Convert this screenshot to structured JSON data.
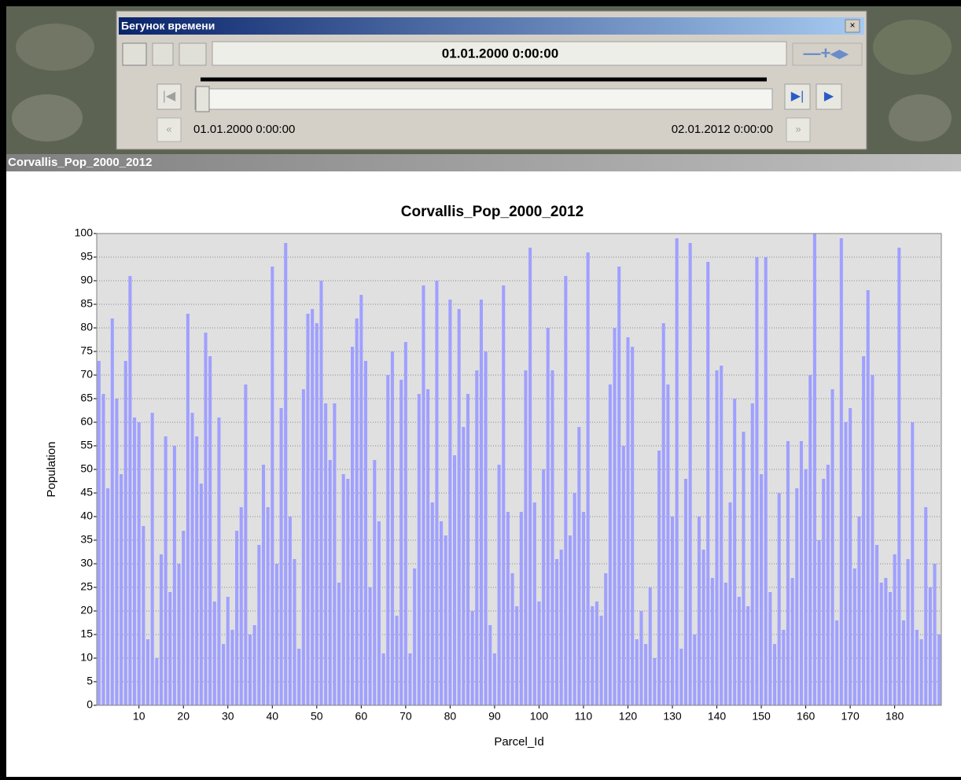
{
  "time_slider": {
    "title": "Бегунок времени",
    "current_time": "01.01.2000 0:00:00",
    "start_time": "01.01.2000 0:00:00",
    "end_time": "02.01.2012 0:00:00"
  },
  "window": {
    "title": "Corvallis_Pop_2000_2012"
  },
  "chart_data": {
    "type": "bar",
    "title": "Corvallis_Pop_2000_2012",
    "x_label": "Parcel_Id",
    "y_label": "Population",
    "x": [
      1,
      2,
      3,
      4,
      5,
      6,
      7,
      8,
      9,
      10,
      11,
      12,
      13,
      14,
      15,
      16,
      17,
      18,
      19,
      20,
      21,
      22,
      23,
      24,
      25,
      26,
      27,
      28,
      29,
      30,
      31,
      32,
      33,
      34,
      35,
      36,
      37,
      38,
      39,
      40,
      41,
      42,
      43,
      44,
      45,
      46,
      47,
      48,
      49,
      50,
      51,
      52,
      53,
      54,
      55,
      56,
      57,
      58,
      59,
      60,
      61,
      62,
      63,
      64,
      65,
      66,
      67,
      68,
      69,
      70,
      71,
      72,
      73,
      74,
      75,
      76,
      77,
      78,
      79,
      80,
      81,
      82,
      83,
      84,
      85,
      86,
      87,
      88,
      89,
      90,
      91,
      92,
      93,
      94,
      95,
      96,
      97,
      98,
      99,
      100,
      101,
      102,
      103,
      104,
      105,
      106,
      107,
      108,
      109,
      110,
      111,
      112,
      113,
      114,
      115,
      116,
      117,
      118,
      119,
      120,
      121,
      122,
      123,
      124,
      125,
      126,
      127,
      128,
      129,
      130,
      131,
      132,
      133,
      134,
      135,
      136,
      137,
      138,
      139,
      140,
      141,
      142,
      143,
      144,
      145,
      146,
      147,
      148,
      149,
      150,
      151,
      152,
      153,
      154,
      155,
      156,
      157,
      158,
      159,
      160,
      161,
      162,
      163,
      164,
      165,
      166,
      167,
      168,
      169,
      170,
      171,
      172,
      173,
      174,
      175,
      176,
      177,
      178,
      179,
      180,
      181,
      182,
      183,
      184,
      185,
      186,
      187,
      188,
      189,
      190
    ],
    "values": [
      73,
      66,
      46,
      82,
      65,
      49,
      73,
      91,
      61,
      60,
      38,
      14,
      62,
      10,
      32,
      57,
      24,
      55,
      30,
      37,
      83,
      62,
      57,
      47,
      79,
      74,
      22,
      61,
      13,
      23,
      16,
      37,
      42,
      68,
      15,
      17,
      34,
      51,
      42,
      93,
      30,
      63,
      98,
      40,
      31,
      12,
      67,
      83,
      84,
      81,
      90,
      64,
      52,
      64,
      26,
      49,
      48,
      76,
      82,
      87,
      73,
      25,
      52,
      39,
      11,
      70,
      75,
      19,
      69,
      77,
      11,
      29,
      66,
      89,
      67,
      43,
      90,
      39,
      36,
      86,
      53,
      84,
      59,
      66,
      20,
      71,
      86,
      75,
      17,
      11,
      51,
      89,
      41,
      28,
      21,
      41,
      71,
      97,
      43,
      22,
      50,
      80,
      71,
      31,
      33,
      91,
      36,
      45,
      59,
      41,
      96,
      21,
      22,
      19,
      28,
      68,
      80,
      93,
      55,
      78,
      76,
      14,
      20,
      13,
      25,
      10,
      54,
      81,
      68,
      40,
      99,
      12,
      48,
      98,
      15,
      40,
      33,
      94,
      27,
      71,
      72,
      26,
      43,
      65,
      23,
      58,
      21,
      64,
      95,
      49,
      95,
      24,
      13,
      45,
      16,
      56,
      27,
      46,
      56,
      50,
      70,
      100,
      35,
      48,
      51,
      67,
      18,
      99,
      60,
      63,
      29,
      40,
      74,
      88,
      70,
      34,
      26,
      27,
      24,
      32,
      97,
      18,
      31,
      60,
      16,
      14,
      42,
      25,
      30,
      15
    ],
    "color": "#a0a0ff",
    "xlim": [
      0.5,
      190.5
    ],
    "xticks": [
      10,
      20,
      30,
      40,
      50,
      60,
      70,
      80,
      90,
      100,
      110,
      120,
      130,
      140,
      150,
      160,
      170,
      180
    ],
    "ylim": [
      0,
      100
    ],
    "yticks": [
      0,
      5,
      10,
      15,
      20,
      25,
      30,
      35,
      40,
      45,
      50,
      55,
      60,
      65,
      70,
      75,
      80,
      85,
      90,
      95,
      100
    ],
    "grid": true
  }
}
